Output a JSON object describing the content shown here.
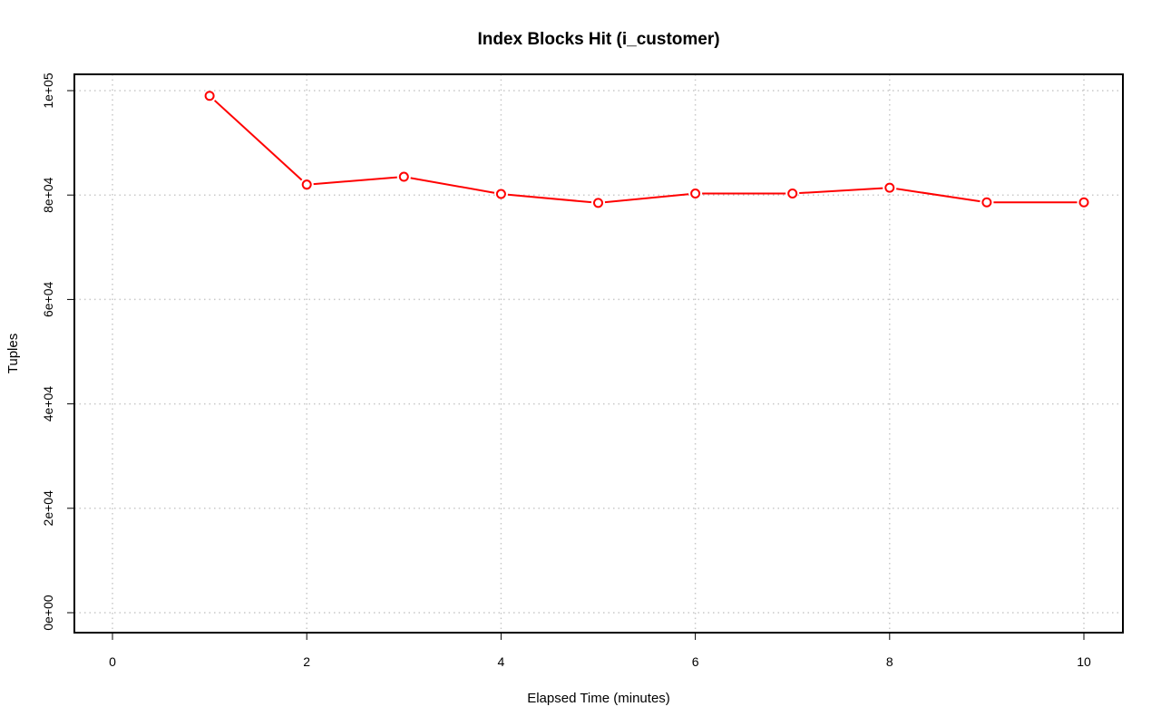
{
  "chart_data": {
    "type": "line",
    "title": "Index Blocks Hit (i_customer)",
    "xlabel": "Elapsed Time (minutes)",
    "ylabel": "Tuples",
    "xlim": [
      0,
      10
    ],
    "ylim": [
      0,
      100000
    ],
    "x_ticks": [
      0,
      2,
      4,
      6,
      8,
      10
    ],
    "x_tick_labels": [
      "0",
      "2",
      "4",
      "6",
      "8",
      "10"
    ],
    "y_ticks": [
      0,
      20000,
      40000,
      60000,
      80000,
      100000
    ],
    "y_tick_labels": [
      "0e+00",
      "2e+04",
      "4e+04",
      "6e+04",
      "8e+04",
      "1e+05"
    ],
    "grid": true,
    "series": [
      {
        "color": "#ff0000",
        "marker": "circle",
        "x": [
          1,
          2,
          3,
          4,
          5,
          6,
          7,
          8,
          9,
          10
        ],
        "y": [
          99000,
          82000,
          83500,
          80200,
          78500,
          80300,
          80300,
          81400,
          78600,
          78600
        ]
      }
    ]
  }
}
